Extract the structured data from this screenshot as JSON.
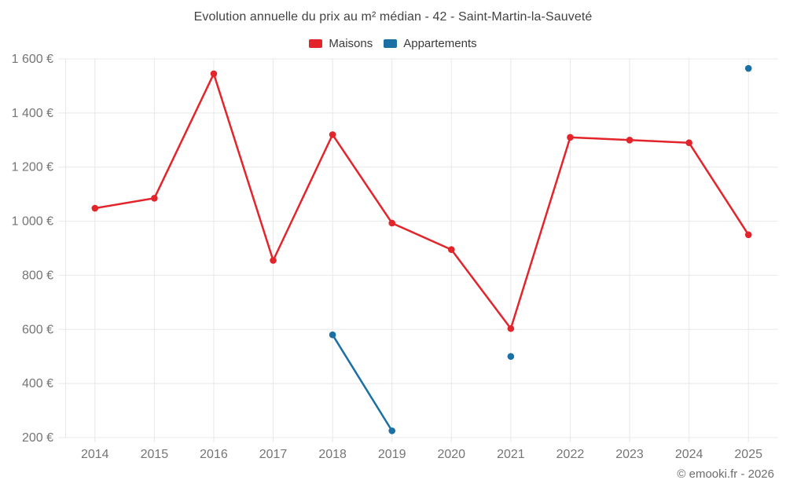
{
  "chart_data": {
    "type": "line",
    "title": "Evolution annuelle du prix au m² médian - 42 - Saint-Martin-la-Sauveté",
    "categories": [
      "2014",
      "2015",
      "2016",
      "2017",
      "2018",
      "2019",
      "2020",
      "2021",
      "2022",
      "2023",
      "2024",
      "2025"
    ],
    "series": [
      {
        "name": "Maisons",
        "color": "#e3242b",
        "values": [
          1048,
          1085,
          1545,
          855,
          1320,
          993,
          895,
          603,
          1310,
          1300,
          1290,
          950
        ]
      },
      {
        "name": "Appartements",
        "color": "#1a6fa5",
        "values": [
          null,
          null,
          null,
          null,
          580,
          225,
          null,
          500,
          null,
          null,
          null,
          1565
        ]
      }
    ],
    "ylim": [
      200,
      1600
    ],
    "ytick_step": 200,
    "ytick_suffix": " €",
    "xlabel": "",
    "ylabel": "",
    "grid": true,
    "legend_position": "top"
  },
  "footer": {
    "copyright": "© emooki.fr - 2026"
  },
  "colors": {
    "grid": "#e8e8e8",
    "axis_label": "#757575",
    "title": "#434343",
    "legend_text": "#3a3a3a",
    "footer": "#6d6d6d"
  }
}
